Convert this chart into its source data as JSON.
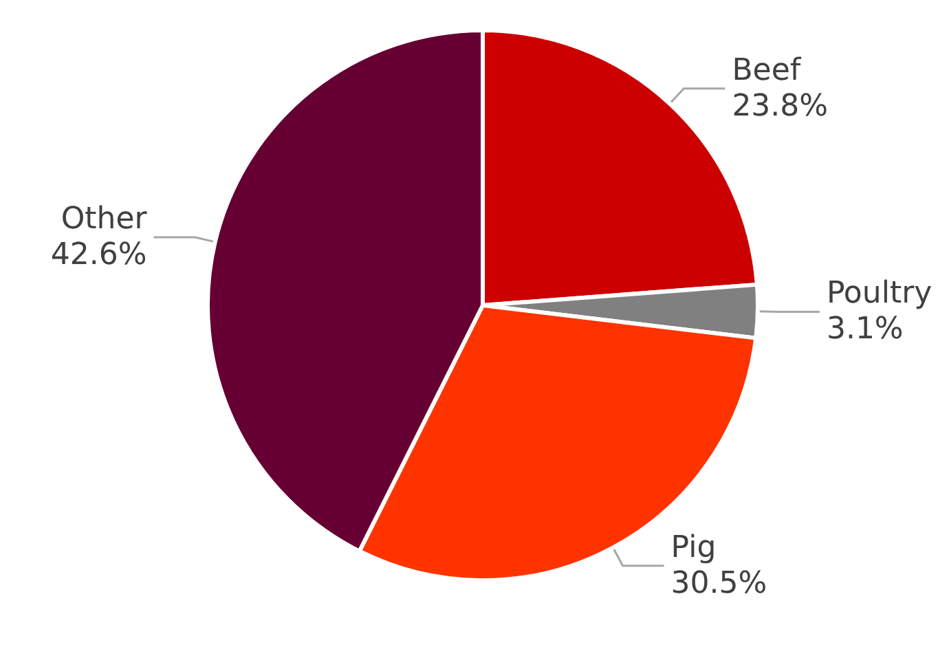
{
  "chart_data": {
    "type": "pie",
    "categories": [
      "Beef",
      "Poultry",
      "Pig",
      "Other"
    ],
    "values": [
      23.8,
      3.1,
      30.5,
      42.6
    ],
    "colors": [
      "#cc0000",
      "#808080",
      "#ff3300",
      "#660033"
    ],
    "value_labels": [
      "23.8%",
      "3.1%",
      "30.5%",
      "42.6%"
    ],
    "legend": false
  }
}
